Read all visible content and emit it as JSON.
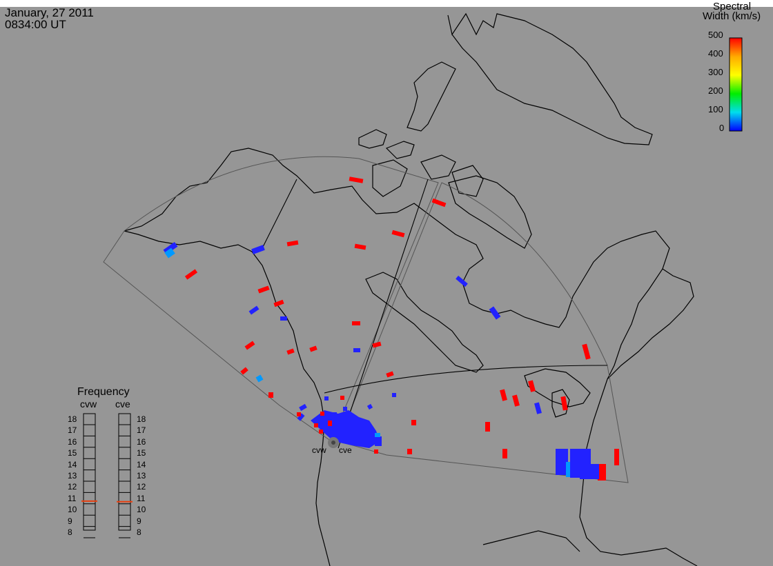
{
  "header": {
    "date": "January, 27 2011",
    "time": "0834:00 UT"
  },
  "colorbar": {
    "title_line1": "Spectral",
    "title_line2": "Width (km/s)",
    "ticks": [
      "500",
      "400",
      "300",
      "200",
      "100",
      "0"
    ],
    "gradient_colors": [
      "#ff0000",
      "#ffaa00",
      "#ffff00",
      "#00ee00",
      "#00ddee",
      "#0000ff"
    ]
  },
  "radars": {
    "west_label": "cvw",
    "east_label": "cve"
  },
  "frequency_panel": {
    "title": "Frequency",
    "col_west": "cvw",
    "col_east": "cve",
    "scale": [
      "18",
      "17",
      "16",
      "15",
      "14",
      "13",
      "12",
      "11",
      "10",
      "9",
      "8"
    ],
    "cvw_mhz": 10.75,
    "cve_mhz": 10.7,
    "marker_color": "#e84010"
  },
  "colors": {
    "background": "#969696",
    "coast": "#000000",
    "fov": "#555555",
    "high_width": "#ff0000",
    "low_width": "#2222ff",
    "mid_width": "#0099ff"
  }
}
